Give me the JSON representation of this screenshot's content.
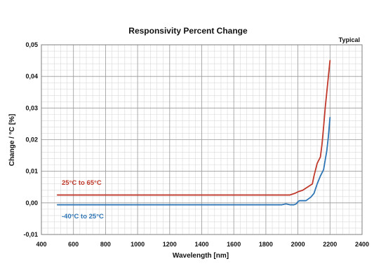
{
  "chart_data": {
    "type": "line",
    "title": "Responsivity Percent Change",
    "note": "Typical",
    "xlabel": "Wavelength [nm]",
    "ylabel": "Change / °C [%]",
    "xlim": [
      400,
      2400
    ],
    "ylim": [
      -0.01,
      0.05
    ],
    "grid": true,
    "x_ticks": [
      400,
      600,
      800,
      1000,
      1200,
      1400,
      1600,
      1800,
      2000,
      2200,
      2400
    ],
    "x_tick_labels": [
      "400",
      "600",
      "800",
      "1000",
      "1200",
      "1400",
      "1600",
      "1800",
      "2000",
      "2200",
      "2400"
    ],
    "y_ticks": [
      -0.01,
      0.0,
      0.01,
      0.02,
      0.03,
      0.04,
      0.05
    ],
    "y_tick_labels": [
      "-0,01",
      "0,00",
      "0,01",
      "0,02",
      "0,03",
      "0,04",
      "0,05"
    ],
    "legend_placement": "inline-left",
    "series": [
      {
        "name": "25°C to 65°C",
        "color": "#c0392b",
        "x": [
          500,
          1950,
          1980,
          2000,
          2030,
          2060,
          2090,
          2100,
          2120,
          2140,
          2150,
          2160,
          2170,
          2180,
          2190,
          2200
        ],
        "y": [
          0.0025,
          0.0025,
          0.003,
          0.0035,
          0.004,
          0.005,
          0.006,
          0.0085,
          0.0125,
          0.0145,
          0.0185,
          0.024,
          0.03,
          0.035,
          0.04,
          0.045
        ]
      },
      {
        "name": "-40°C to 25°C",
        "color": "#2e75b6",
        "x": [
          500,
          1900,
          1925,
          1950,
          1975,
          1990,
          2000,
          2010,
          2050,
          2080,
          2100,
          2120,
          2140,
          2160,
          2170,
          2180,
          2190,
          2200
        ],
        "y": [
          -0.0006,
          -0.0006,
          -0.0003,
          -0.0006,
          -0.0006,
          -0.0003,
          0.0004,
          0.0007,
          0.0007,
          0.0018,
          0.003,
          0.006,
          0.0085,
          0.0105,
          0.0135,
          0.0165,
          0.021,
          0.027
        ]
      }
    ]
  }
}
